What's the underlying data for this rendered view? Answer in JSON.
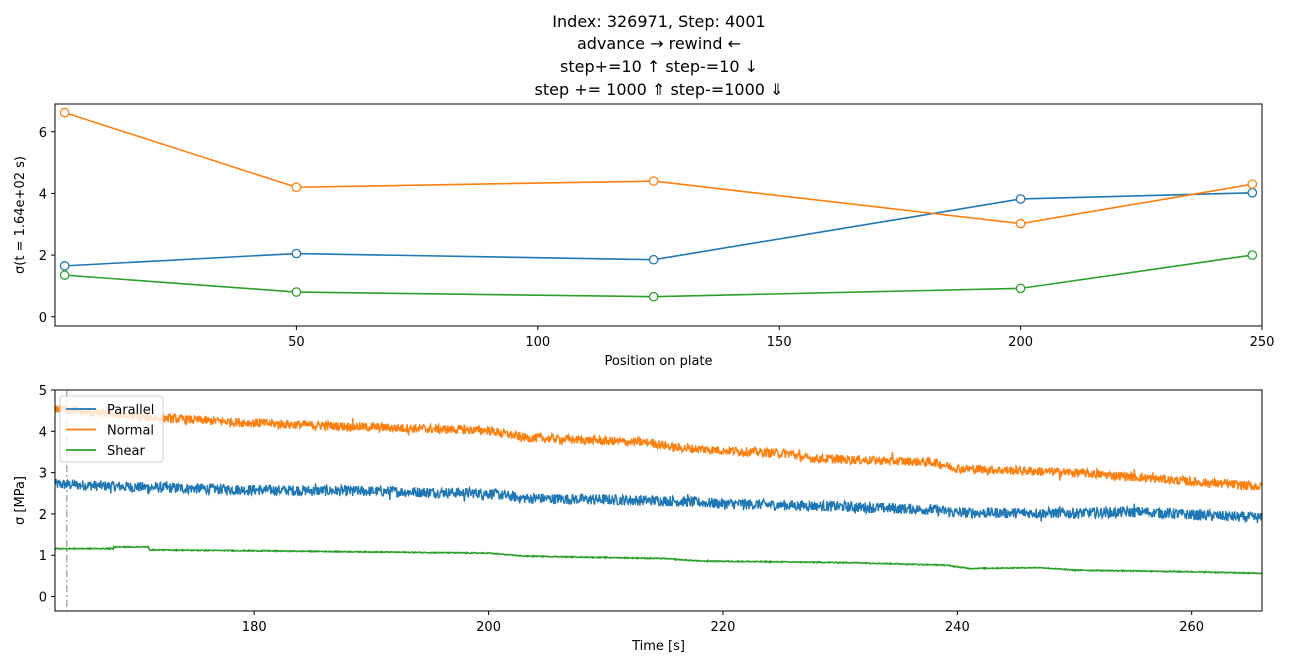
{
  "title_lines": [
    "Index: 326971, Step: 4001",
    "advance  →        rewind  ←",
    "step+=10  ↑            step-=10  ↓",
    "step += 1000  ⇑        step-=1000 ⇓"
  ],
  "chart_data": [
    {
      "type": "line",
      "xlabel": "Position on plate",
      "ylabel": "σ(t = 1.64e+02 s)",
      "xlim": [
        0,
        250
      ],
      "ylim": [
        -0.3,
        6.9
      ],
      "xticks": [
        50,
        100,
        150,
        200,
        250
      ],
      "yticks": [
        0,
        2,
        4,
        6
      ],
      "markers": "open-circle",
      "grid": false,
      "x": [
        2,
        50,
        124,
        200,
        248
      ],
      "series": [
        {
          "color": "#1f77b4",
          "values": [
            1.65,
            2.05,
            1.85,
            3.82,
            4.02
          ]
        },
        {
          "color": "#ff7f0e",
          "values": [
            6.62,
            4.2,
            4.4,
            3.02,
            4.3
          ]
        },
        {
          "color": "#2ca02c",
          "values": [
            1.35,
            0.8,
            0.65,
            0.92,
            2.0
          ]
        }
      ]
    },
    {
      "type": "line",
      "xlabel": "Time [s]",
      "ylabel": "σ [MPa]",
      "xlim": [
        163,
        266
      ],
      "ylim": [
        -0.35,
        5.0
      ],
      "xticks": [
        180,
        200,
        220,
        240,
        260
      ],
      "yticks": [
        0,
        1,
        2,
        3,
        4,
        5
      ],
      "legend": "top-left",
      "grid": false,
      "marker_line": {
        "x": 164,
        "style": "dash-dot",
        "color": "#aaaaaa"
      },
      "series": [
        {
          "name": "Parallel",
          "color": "#1f77b4",
          "points": [
            [
              163,
              2.72
            ],
            [
              170,
              2.65
            ],
            [
              180,
              2.58
            ],
            [
              190,
              2.55
            ],
            [
              200,
              2.5
            ],
            [
              203,
              2.38
            ],
            [
              215,
              2.32
            ],
            [
              220,
              2.25
            ],
            [
              230,
              2.18
            ],
            [
              238,
              2.1
            ],
            [
              240,
              2.03
            ],
            [
              250,
              2.02
            ],
            [
              256,
              2.05
            ],
            [
              260,
              1.98
            ],
            [
              266,
              1.9
            ]
          ]
        },
        {
          "name": "Normal",
          "color": "#ff7f0e",
          "points": [
            [
              163,
              4.55
            ],
            [
              170,
              4.35
            ],
            [
              180,
              4.2
            ],
            [
              190,
              4.1
            ],
            [
              200,
              4.02
            ],
            [
              203,
              3.85
            ],
            [
              214,
              3.72
            ],
            [
              216,
              3.6
            ],
            [
              226,
              3.45
            ],
            [
              227,
              3.35
            ],
            [
              238,
              3.25
            ],
            [
              240,
              3.1
            ],
            [
              250,
              3.0
            ],
            [
              255,
              2.9
            ],
            [
              260,
              2.78
            ],
            [
              266,
              2.66
            ]
          ]
        },
        {
          "name": "Shear",
          "color": "#2ca02c",
          "points": [
            [
              163,
              1.16
            ],
            [
              168,
              1.16
            ],
            [
              168,
              1.2
            ],
            [
              171,
              1.2
            ],
            [
              171,
              1.13
            ],
            [
              183,
              1.1
            ],
            [
              200,
              1.05
            ],
            [
              203,
              0.98
            ],
            [
              215,
              0.92
            ],
            [
              218,
              0.86
            ],
            [
              231,
              0.82
            ],
            [
              239,
              0.76
            ],
            [
              241,
              0.68
            ],
            [
              247,
              0.7
            ],
            [
              250,
              0.64
            ],
            [
              260,
              0.6
            ],
            [
              266,
              0.56
            ]
          ]
        }
      ]
    }
  ]
}
